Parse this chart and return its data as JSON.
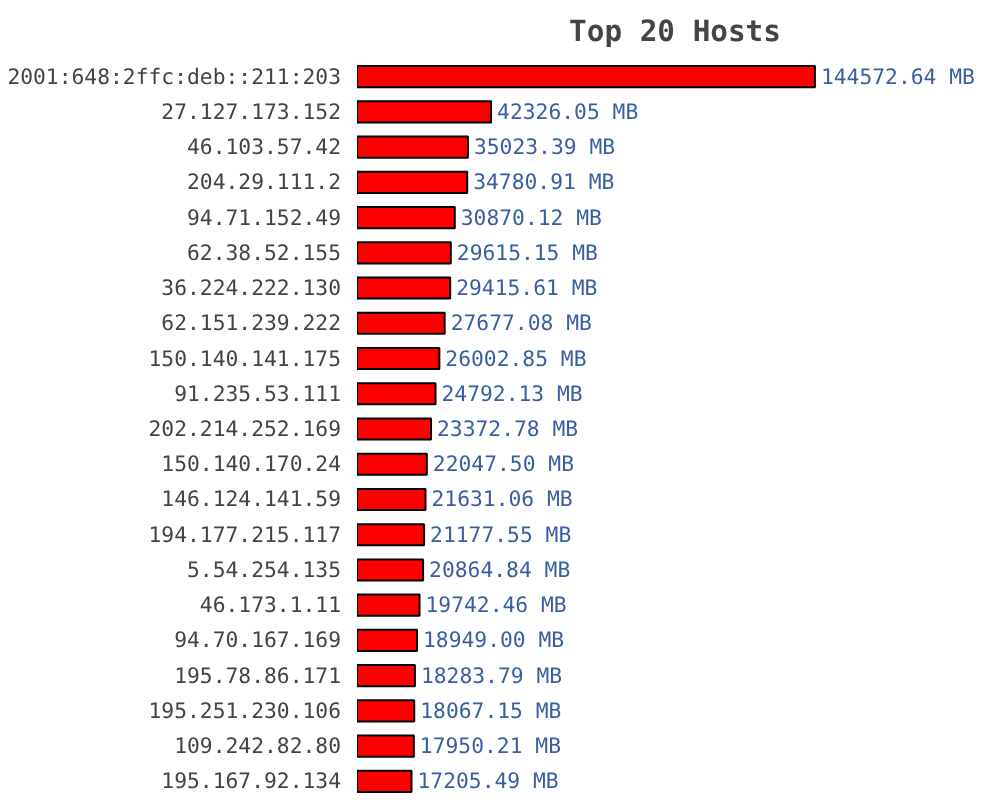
{
  "chart_data": {
    "type": "bar",
    "orientation": "horizontal",
    "title": "Top 20 Hosts",
    "color": "#ff0000",
    "categories": [
      "2001:648:2ffc:deb::211:203",
      "27.127.173.152",
      "46.103.57.42",
      "204.29.111.2",
      "94.71.152.49",
      "62.38.52.155",
      "36.224.222.130",
      "62.151.239.222",
      "150.140.141.175",
      "91.235.53.111",
      "202.214.252.169",
      "150.140.170.24",
      "146.124.141.59",
      "194.177.215.117",
      "5.54.254.135",
      "46.173.1.11",
      "94.70.167.169",
      "195.78.86.171",
      "195.251.230.106",
      "109.242.82.80",
      "195.167.92.134"
    ],
    "values": [
      144572.64,
      42326.05,
      35023.39,
      34780.91,
      30870.12,
      29615.15,
      29415.61,
      27677.08,
      26002.85,
      24792.13,
      23372.78,
      22047.5,
      21631.06,
      21177.55,
      20864.84,
      19742.46,
      18949.0,
      18283.79,
      18067.15,
      17950.21,
      17205.49
    ],
    "value_labels": [
      "144572.64 MB",
      "42326.05 MB",
      "35023.39 MB",
      "34780.91 MB",
      "30870.12 MB",
      "29615.15 MB",
      "29415.61 MB",
      "27677.08 MB",
      "26002.85 MB",
      "24792.13 MB",
      "23372.78 MB",
      "22047.50 MB",
      "21631.06 MB",
      "21177.55 MB",
      "20864.84 MB",
      "19742.46 MB",
      "18949.00 MB",
      "18283.79 MB",
      "18067.15 MB",
      "17950.21 MB",
      "17205.49 MB"
    ]
  }
}
